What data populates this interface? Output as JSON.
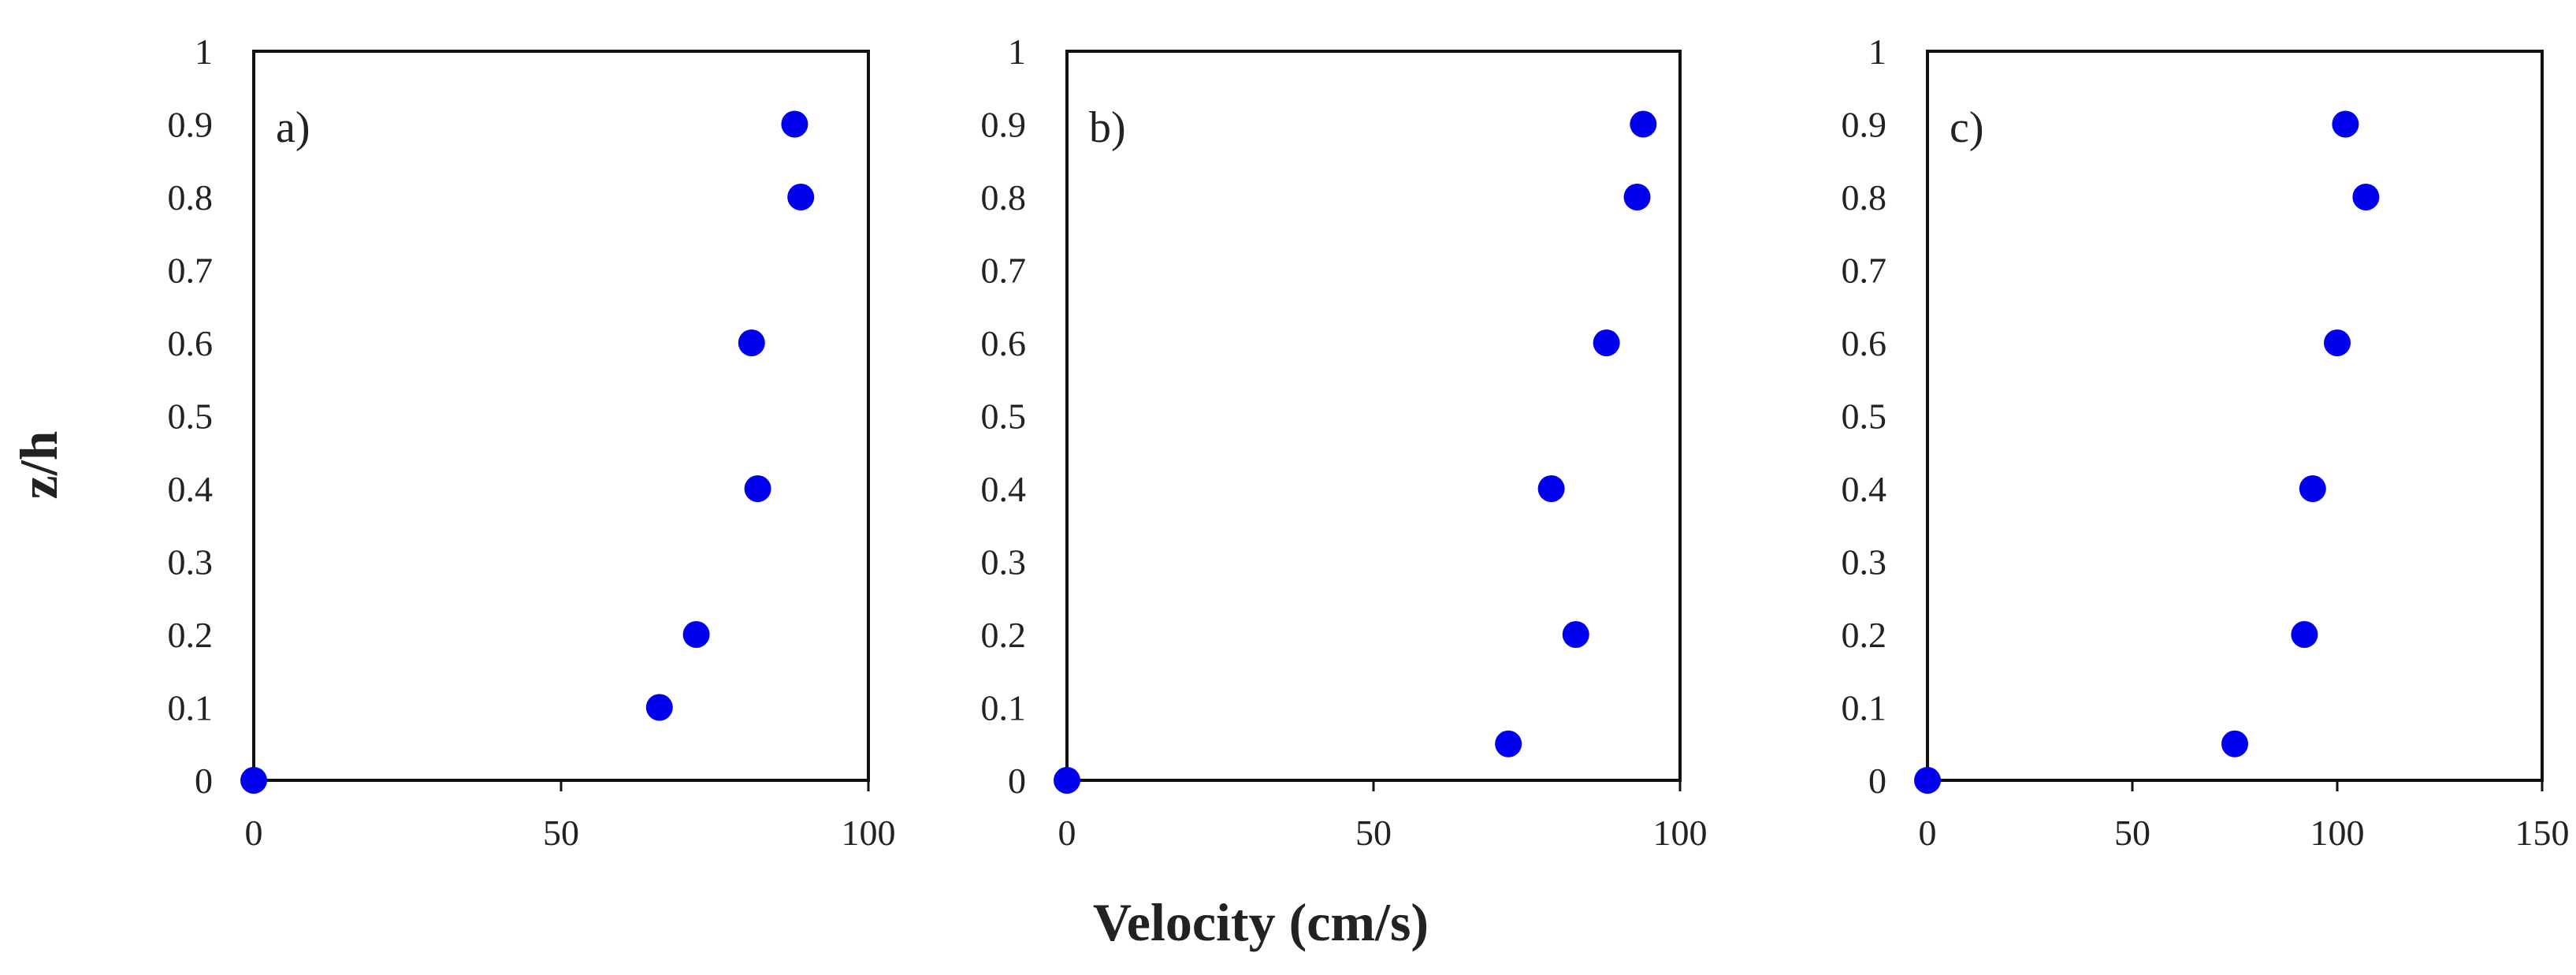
{
  "chart_data": {
    "type": "scatter",
    "ylabel": "z/h",
    "xlabel": "Velocity (cm/s)",
    "marker_color": "#0000ee",
    "y_ticks": [
      "0",
      "0.1",
      "0.2",
      "0.3",
      "0.4",
      "0.5",
      "0.6",
      "0.7",
      "0.8",
      "0.9",
      "1"
    ],
    "ylim": [
      0,
      1
    ],
    "panels": [
      {
        "label": "a)",
        "xlim": [
          0,
          100
        ],
        "x_ticks": [
          "0",
          "50",
          "100"
        ],
        "points": [
          {
            "x": 0,
            "y": 0
          },
          {
            "x": 66,
            "y": 0.1
          },
          {
            "x": 72,
            "y": 0.2
          },
          {
            "x": 82,
            "y": 0.4
          },
          {
            "x": 81,
            "y": 0.6
          },
          {
            "x": 89,
            "y": 0.8
          },
          {
            "x": 88,
            "y": 0.9
          }
        ]
      },
      {
        "label": "b)",
        "xlim": [
          0,
          100
        ],
        "x_ticks": [
          "0",
          "50",
          "100"
        ],
        "points": [
          {
            "x": 0,
            "y": 0
          },
          {
            "x": 72,
            "y": 0.05
          },
          {
            "x": 83,
            "y": 0.2
          },
          {
            "x": 79,
            "y": 0.4
          },
          {
            "x": 88,
            "y": 0.6
          },
          {
            "x": 93,
            "y": 0.8
          },
          {
            "x": 94,
            "y": 0.9
          }
        ]
      },
      {
        "label": "c)",
        "xlim": [
          0,
          150
        ],
        "x_ticks": [
          "0",
          "50",
          "100",
          "150"
        ],
        "points": [
          {
            "x": 0,
            "y": 0
          },
          {
            "x": 75,
            "y": 0.05
          },
          {
            "x": 92,
            "y": 0.2
          },
          {
            "x": 94,
            "y": 0.4
          },
          {
            "x": 100,
            "y": 0.6
          },
          {
            "x": 107,
            "y": 0.8
          },
          {
            "x": 102,
            "y": 0.9
          }
        ]
      }
    ]
  }
}
